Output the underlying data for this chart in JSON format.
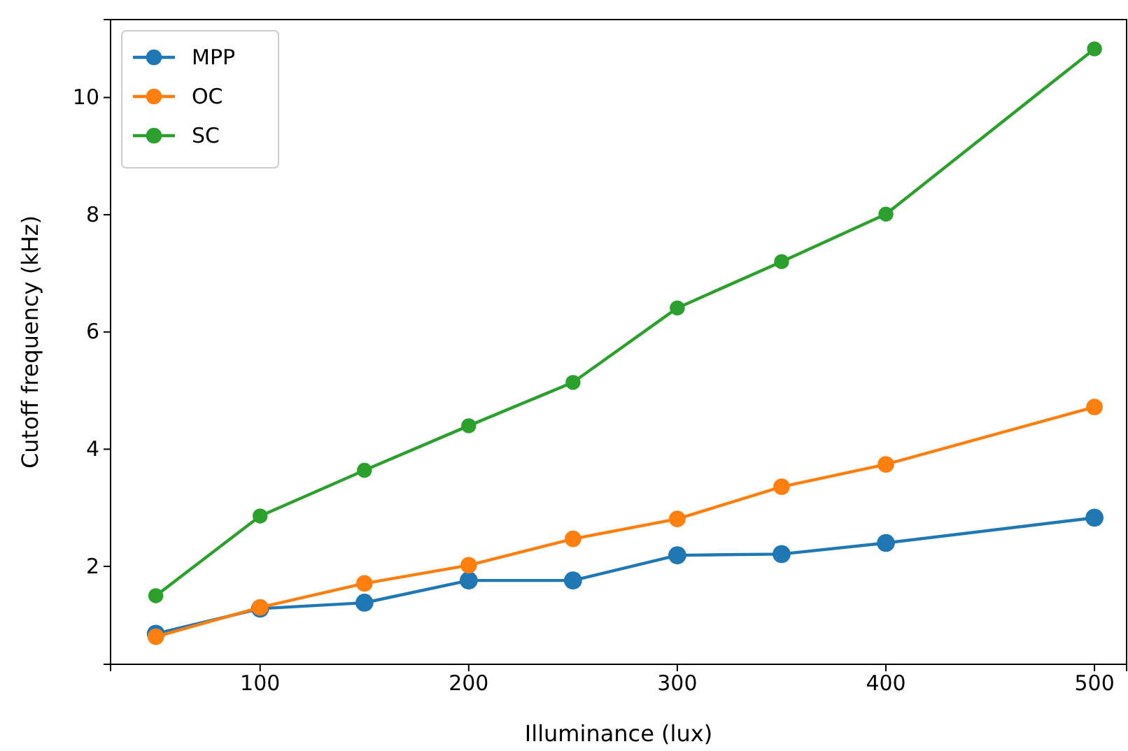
{
  "chart_data": {
    "type": "line",
    "xlabel": "Illuminance (lux)",
    "ylabel": "Cutoff frequency (kHz)",
    "x": [
      50,
      100,
      150,
      200,
      250,
      300,
      350,
      400,
      500
    ],
    "series": [
      {
        "name": "MPP",
        "color": "#1f77b4",
        "values": [
          0.85,
          1.28,
          1.38,
          1.76,
          1.76,
          2.19,
          2.21,
          2.4,
          2.83
        ]
      },
      {
        "name": "OC",
        "color": "#ff7f0e",
        "values": [
          0.8,
          1.3,
          1.71,
          2.02,
          2.47,
          2.81,
          3.36,
          3.74,
          4.72
        ]
      },
      {
        "name": "SC",
        "color": "#2ca02c",
        "values": [
          1.5,
          2.86,
          3.64,
          4.4,
          5.14,
          6.41,
          7.2,
          8.01,
          10.83
        ]
      }
    ],
    "xlim": [
      28.3,
      515.4
    ],
    "xticks": [
      100,
      200,
      300,
      400,
      500
    ],
    "ylim": [
      0.33,
      11.33
    ],
    "yticks": [
      2,
      4,
      6,
      8,
      10
    ],
    "grid": false,
    "legend": "top left",
    "marker": "circle",
    "line_style": "solid"
  }
}
